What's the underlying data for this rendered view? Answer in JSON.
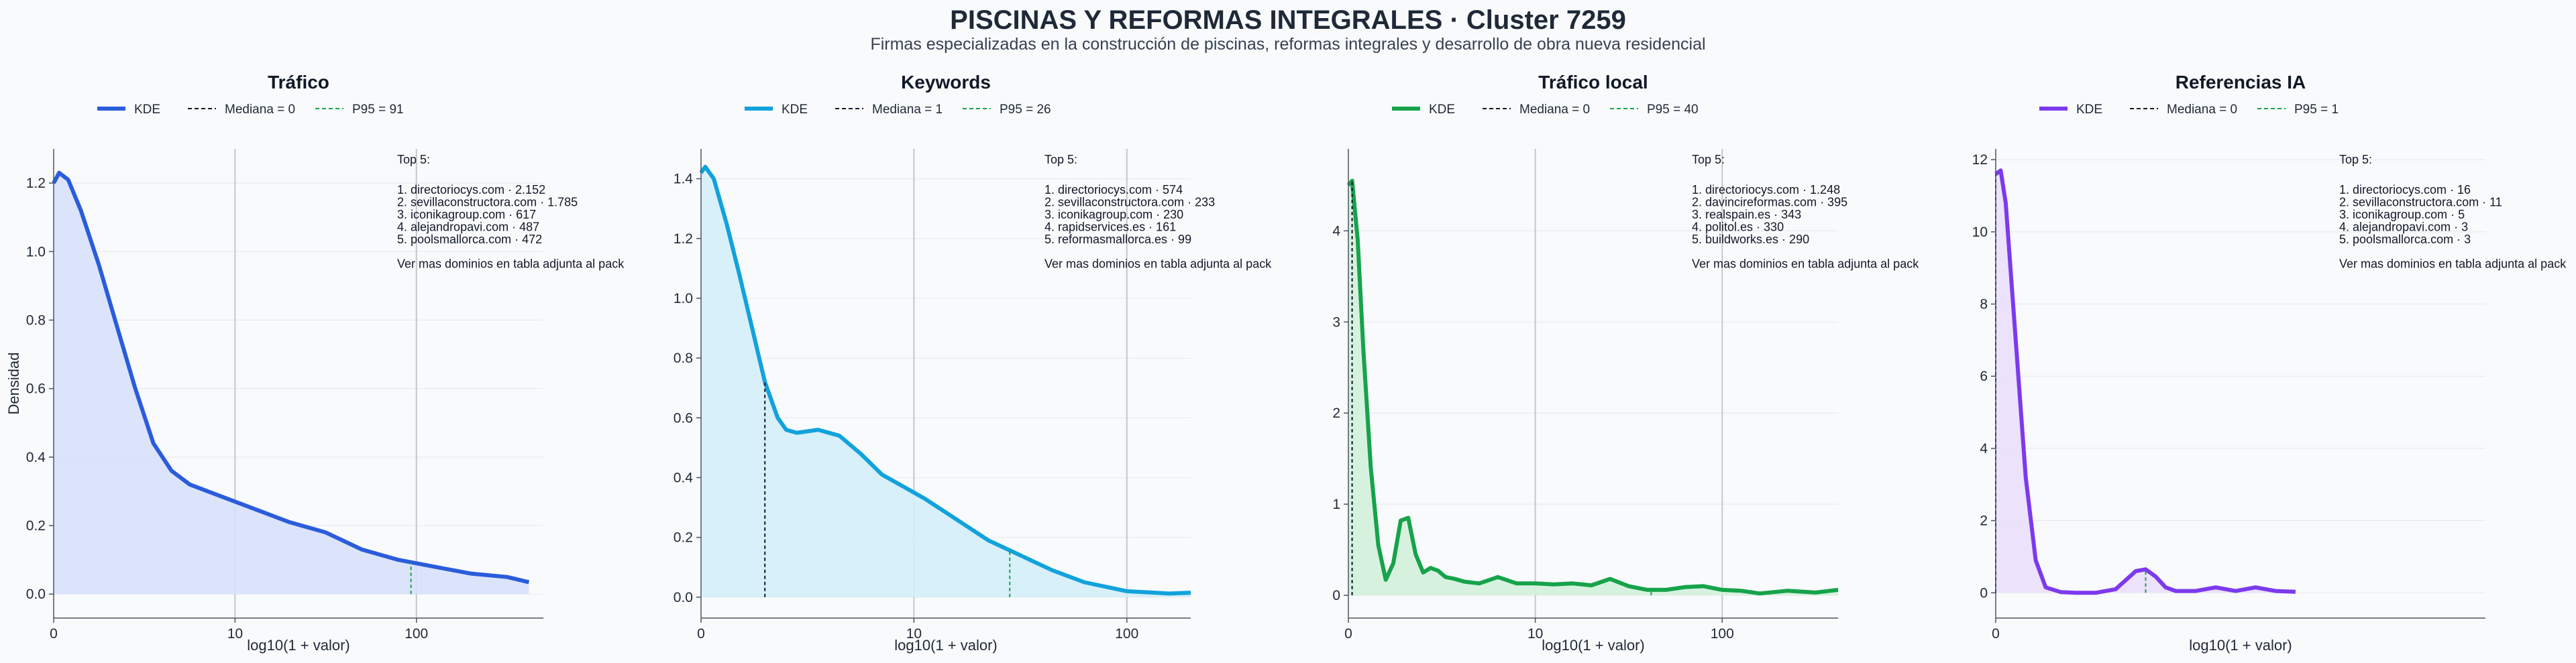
{
  "header": {
    "title": "PISCINAS Y REFORMAS INTEGRALES · Cluster 7259",
    "subtitle": "Firmas especializadas en la construcción de piscinas, reformas integrales y desarrollo de obra nueva residencial"
  },
  "shared": {
    "ylabel": "Densidad",
    "xlabel": "log10(1 + valor)",
    "legend_kde": "KDE",
    "top_header": "Top 5:",
    "top_footer": "Ver mas dominios en tabla adjunta al pack"
  },
  "chart_data": [
    {
      "type": "area",
      "title": "Tráfico",
      "color": "#2b5cdb",
      "fill": "#d7e1fb",
      "legend_median": "Mediana = 0",
      "legend_p95": "P95 = 91",
      "median": 0,
      "p95": 91,
      "xlabel": "log10(1 + valor)",
      "ylabel": "Densidad",
      "xlim": [
        0,
        2.7
      ],
      "ylim": [
        -0.07,
        1.3
      ],
      "xticks": [
        {
          "v": 0,
          "l": "0"
        },
        {
          "v": 1,
          "l": "10"
        },
        {
          "v": 2,
          "l": "100"
        }
      ],
      "yticks": [
        0,
        0.2,
        0.4,
        0.6,
        0.8,
        1.0,
        1.2
      ],
      "ytick_labels": [
        "0.0",
        "0.2",
        "0.4",
        "0.6",
        "0.8",
        "1.0",
        "1.2"
      ],
      "vlines": [
        1.0,
        2.0
      ],
      "x": [
        0,
        0.03,
        0.08,
        0.15,
        0.25,
        0.35,
        0.45,
        0.55,
        0.65,
        0.75,
        0.85,
        1.0,
        1.15,
        1.3,
        1.5,
        1.7,
        1.9,
        2.1,
        2.3,
        2.5,
        2.62
      ],
      "y": [
        1.2,
        1.23,
        1.21,
        1.12,
        0.96,
        0.78,
        0.6,
        0.44,
        0.36,
        0.32,
        0.3,
        0.27,
        0.24,
        0.21,
        0.18,
        0.13,
        0.1,
        0.08,
        0.06,
        0.05,
        0.035
      ],
      "median_marker_y": 1.2,
      "p95_marker_x": 1.97,
      "top5": [
        "1. directoriocys.com · 2.152",
        "2. sevillaconstructora.com · 1.785",
        "3. iconikagroup.com · 617",
        "4. alejandropavi.com · 487",
        "5. poolsmallorca.com · 472"
      ]
    },
    {
      "type": "area",
      "title": "Keywords",
      "color": "#12a2dc",
      "fill": "#d3eef9",
      "legend_median": "Mediana = 1",
      "legend_p95": "P95 = 26",
      "median": 1,
      "p95": 26,
      "xlabel": "log10(1 + valor)",
      "ylabel": "",
      "xlim": [
        0,
        2.3
      ],
      "ylim": [
        -0.07,
        1.5
      ],
      "xticks": [
        {
          "v": 0,
          "l": "0"
        },
        {
          "v": 1,
          "l": "10"
        },
        {
          "v": 2,
          "l": "100"
        }
      ],
      "yticks": [
        0,
        0.2,
        0.4,
        0.6,
        0.8,
        1.0,
        1.2,
        1.4
      ],
      "ytick_labels": [
        "0.0",
        "0.2",
        "0.4",
        "0.6",
        "0.8",
        "1.0",
        "1.2",
        "1.4"
      ],
      "vlines": [
        1.0,
        2.0
      ],
      "x": [
        0,
        0.02,
        0.06,
        0.12,
        0.18,
        0.24,
        0.3,
        0.36,
        0.4,
        0.45,
        0.55,
        0.65,
        0.75,
        0.85,
        0.95,
        1.05,
        1.2,
        1.35,
        1.5,
        1.65,
        1.8,
        2.0,
        2.2,
        2.3
      ],
      "y": [
        1.42,
        1.44,
        1.4,
        1.25,
        1.08,
        0.9,
        0.72,
        0.6,
        0.56,
        0.55,
        0.56,
        0.54,
        0.48,
        0.41,
        0.37,
        0.33,
        0.26,
        0.19,
        0.14,
        0.09,
        0.05,
        0.02,
        0.012,
        0.015
      ],
      "median_marker_x": 0.3,
      "p95_marker_x": 1.45,
      "top5": [
        "1. directoriocys.com · 574",
        "2. sevillaconstructora.com · 233",
        "3. iconikagroup.com · 230",
        "4. rapidservices.es · 161",
        "5. reformasmallorca.es · 99"
      ]
    },
    {
      "type": "area",
      "title": "Tráfico local",
      "color": "#16a34a",
      "fill": "#d1f1dc",
      "legend_median": "Mediana = 0",
      "legend_p95": "P95 = 40",
      "median": 0,
      "p95": 40,
      "xlabel": "log10(1 + valor)",
      "ylabel": "",
      "xlim": [
        0,
        2.62
      ],
      "ylim": [
        -0.25,
        4.9
      ],
      "xticks": [
        {
          "v": 0,
          "l": "0"
        },
        {
          "v": 1,
          "l": "10"
        },
        {
          "v": 2,
          "l": "100"
        }
      ],
      "yticks": [
        0,
        1,
        2,
        3,
        4
      ],
      "ytick_labels": [
        "0",
        "1",
        "2",
        "3",
        "4"
      ],
      "vlines": [
        1.0,
        2.0
      ],
      "x": [
        0,
        0.02,
        0.05,
        0.08,
        0.12,
        0.16,
        0.2,
        0.24,
        0.28,
        0.32,
        0.36,
        0.4,
        0.44,
        0.48,
        0.52,
        0.57,
        0.62,
        0.7,
        0.8,
        0.9,
        1.0,
        1.1,
        1.2,
        1.3,
        1.4,
        1.5,
        1.6,
        1.7,
        1.8,
        1.9,
        2.0,
        2.1,
        2.2,
        2.35,
        2.5,
        2.62
      ],
      "y": [
        4.5,
        4.55,
        3.9,
        2.7,
        1.4,
        0.55,
        0.17,
        0.35,
        0.82,
        0.85,
        0.45,
        0.25,
        0.3,
        0.27,
        0.2,
        0.18,
        0.15,
        0.13,
        0.2,
        0.13,
        0.13,
        0.12,
        0.13,
        0.11,
        0.18,
        0.1,
        0.06,
        0.06,
        0.09,
        0.1,
        0.06,
        0.05,
        0.02,
        0.05,
        0.03,
        0.06
      ],
      "median_marker_x": 0.02,
      "p95_marker_x": 1.62,
      "top5": [
        "1. directoriocys.com · 1.248",
        "2. davincireformas.com · 395",
        "3. realspain.es · 343",
        "4. politol.es · 330",
        "5. buildworks.es · 290"
      ]
    },
    {
      "type": "area",
      "title": "Referencias IA",
      "color": "#7c3aed",
      "fill": "#ebdffb",
      "legend_median": "Mediana = 0",
      "legend_p95": "P95 = 1",
      "median": 0,
      "p95": 1,
      "xlabel": "log10(1 + valor)",
      "ylabel": "",
      "xlim": [
        0,
        0.98
      ],
      "ylim": [
        -0.7,
        12.3
      ],
      "xticks": [
        {
          "v": 0,
          "l": "0"
        }
      ],
      "yticks": [
        0,
        2,
        4,
        6,
        8,
        10,
        12
      ],
      "ytick_labels": [
        "0",
        "2",
        "4",
        "6",
        "8",
        "10",
        "12"
      ],
      "vlines": [],
      "x": [
        0,
        0.01,
        0.02,
        0.04,
        0.06,
        0.08,
        0.1,
        0.13,
        0.16,
        0.2,
        0.24,
        0.26,
        0.28,
        0.3,
        0.32,
        0.34,
        0.36,
        0.4,
        0.44,
        0.48,
        0.52,
        0.56,
        0.6
      ],
      "y": [
        11.6,
        11.7,
        10.8,
        7.0,
        3.2,
        0.9,
        0.15,
        0.02,
        0.0,
        0.0,
        0.1,
        0.35,
        0.6,
        0.65,
        0.45,
        0.15,
        0.05,
        0.05,
        0.15,
        0.05,
        0.15,
        0.05,
        0.03
      ],
      "median_marker_x": 0.0,
      "p95_marker_x": 0.3,
      "top5": [
        "1. directoriocys.com · 16",
        "2. sevillaconstructora.com · 11",
        "3. iconikagroup.com · 5",
        "4. alejandropavi.com · 3",
        "5. poolsmallorca.com · 3"
      ]
    }
  ]
}
